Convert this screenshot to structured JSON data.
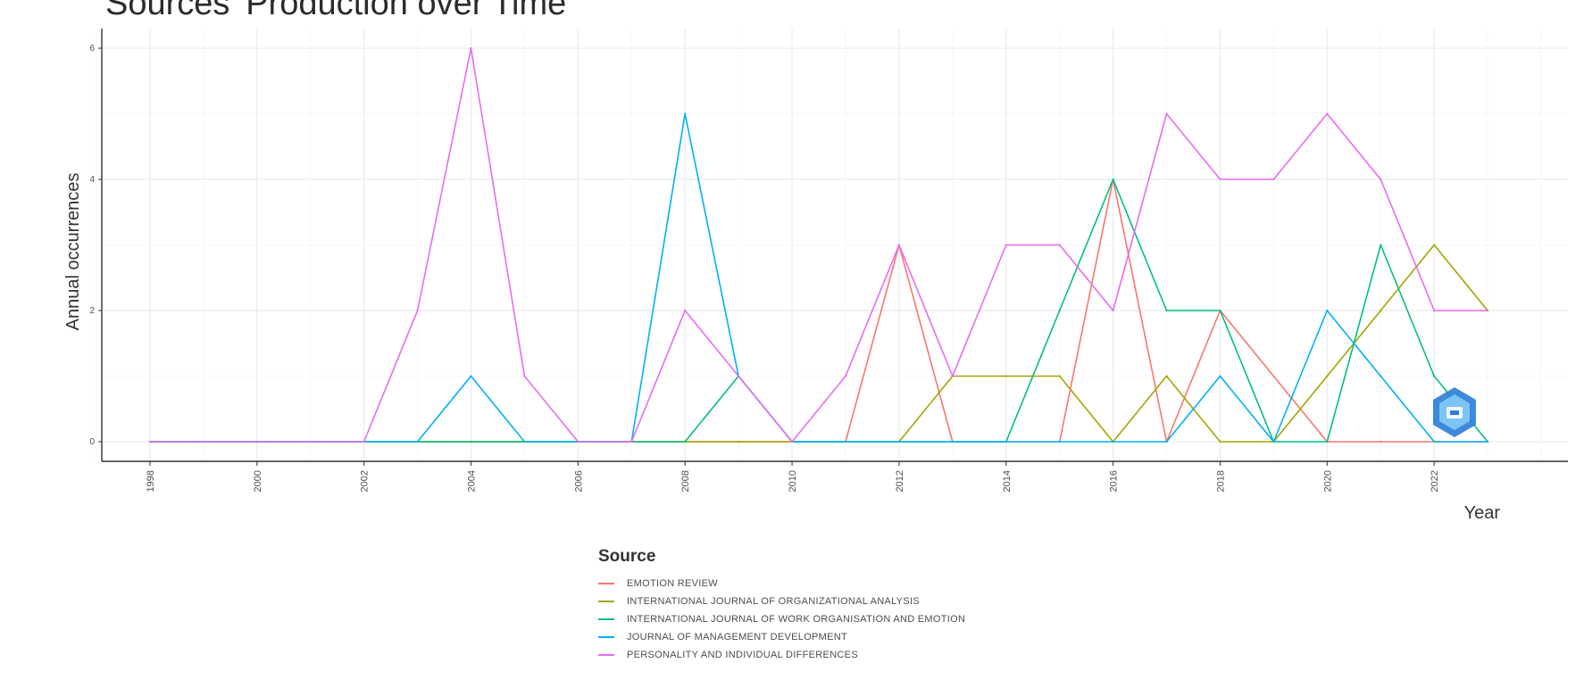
{
  "chart_data": {
    "type": "line",
    "title": "Sources' Production over Time",
    "xlabel": "Year",
    "ylabel": "Annual occurrences",
    "xlim": [
      1997.1,
      2024.5
    ],
    "ylim": [
      -0.3,
      6.3
    ],
    "x_ticks": [
      1998,
      2000,
      2002,
      2004,
      2006,
      2008,
      2010,
      2012,
      2014,
      2016,
      2018,
      2020,
      2022
    ],
    "y_ticks": [
      0,
      2,
      4,
      6
    ],
    "grid": true,
    "legend_title": "Source",
    "legend_position": "bottom",
    "x": [
      1998,
      1999,
      2000,
      2001,
      2002,
      2003,
      2004,
      2005,
      2006,
      2007,
      2008,
      2009,
      2010,
      2011,
      2012,
      2013,
      2014,
      2015,
      2016,
      2017,
      2018,
      2019,
      2020,
      2021,
      2022,
      2023
    ],
    "series": [
      {
        "name": "EMOTION REVIEW",
        "color": "#F8766D",
        "values": [
          0,
          0,
          0,
          0,
          0,
          0,
          0,
          0,
          0,
          0,
          0,
          0,
          0,
          0,
          3,
          0,
          0,
          0,
          4,
          0,
          2,
          1,
          0,
          0,
          0,
          0
        ]
      },
      {
        "name": "INTERNATIONAL JOURNAL OF ORGANIZATIONAL ANALYSIS",
        "color": "#A3A500",
        "values": [
          0,
          0,
          0,
          0,
          0,
          0,
          0,
          0,
          0,
          0,
          0,
          0,
          0,
          0,
          0,
          1,
          1,
          1,
          0,
          1,
          0,
          0,
          1,
          2,
          3,
          2
        ]
      },
      {
        "name": "INTERNATIONAL JOURNAL OF WORK ORGANISATION AND EMOTION",
        "color": "#00BF7D",
        "values": [
          0,
          0,
          0,
          0,
          0,
          0,
          0,
          0,
          0,
          0,
          0,
          1,
          0,
          0,
          0,
          0,
          0,
          2,
          4,
          2,
          2,
          0,
          0,
          3,
          1,
          0
        ]
      },
      {
        "name": "JOURNAL OF MANAGEMENT DEVELOPMENT",
        "color": "#00B0F6",
        "values": [
          0,
          0,
          0,
          0,
          0,
          0,
          1,
          0,
          0,
          0,
          5,
          1,
          0,
          0,
          0,
          0,
          0,
          0,
          0,
          0,
          1,
          0,
          2,
          1,
          0,
          0
        ]
      },
      {
        "name": "PERSONALITY AND INDIVIDUAL DIFFERENCES",
        "color": "#E76BF3",
        "values": [
          0,
          0,
          0,
          0,
          0,
          2,
          6,
          1,
          0,
          0,
          2,
          1,
          0,
          1,
          3,
          1,
          3,
          3,
          2,
          5,
          4,
          4,
          5,
          4,
          2,
          2
        ]
      }
    ]
  }
}
